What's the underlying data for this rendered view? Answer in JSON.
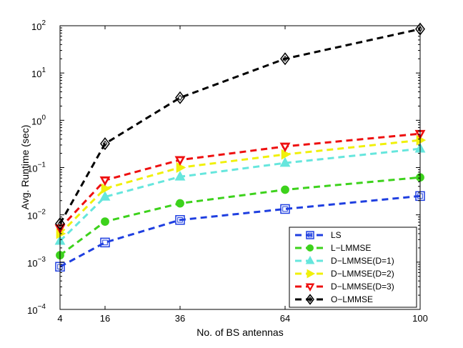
{
  "chart_data": {
    "type": "line",
    "title": "",
    "xlabel": "No. of BS antennas",
    "ylabel": "Avg. Runtime (sec)",
    "x": [
      4,
      16,
      36,
      64,
      100
    ],
    "x_ticks": [
      "4",
      "16",
      "36",
      "64",
      "100"
    ],
    "xlim": [
      4,
      100
    ],
    "y_scale": "log",
    "ylim": [
      0.0001,
      100
    ],
    "y_ticks": [
      {
        "base": "10",
        "exp": "2"
      },
      {
        "base": "10",
        "exp": "1"
      },
      {
        "base": "10",
        "exp": "0"
      },
      {
        "base": "10",
        "exp": "−1"
      },
      {
        "base": "10",
        "exp": "−2"
      },
      {
        "base": "10",
        "exp": "−3"
      },
      {
        "base": "10",
        "exp": "−4"
      }
    ],
    "grid": false,
    "legend_position": "bottom-right",
    "series": [
      {
        "name": "LS",
        "color": "#1f3fe0",
        "marker": "square",
        "values": [
          0.0008,
          0.0026,
          0.0078,
          0.0133,
          0.025
        ]
      },
      {
        "name": "L−LMMSE",
        "color": "#3dd21c",
        "marker": "circle",
        "values": [
          0.0014,
          0.0072,
          0.0175,
          0.034,
          0.062
        ]
      },
      {
        "name": "D−LMMSE(D=1)",
        "color": "#66e6dd",
        "marker": "triangle-up",
        "values": [
          0.0028,
          0.024,
          0.064,
          0.125,
          0.25
        ]
      },
      {
        "name": "D−LMMSE(D=2)",
        "color": "#f0f00a",
        "marker": "triangle-right",
        "values": [
          0.004,
          0.036,
          0.1,
          0.19,
          0.38
        ]
      },
      {
        "name": "D−LMMSE(D=3)",
        "color": "#ee1010",
        "marker": "triangle-down",
        "values": [
          0.0052,
          0.054,
          0.145,
          0.28,
          0.52
        ]
      },
      {
        "name": "O−LMMSE",
        "color": "#000000",
        "marker": "diamond",
        "values": [
          0.0065,
          0.32,
          3.0,
          20.0,
          85.0
        ]
      }
    ]
  }
}
